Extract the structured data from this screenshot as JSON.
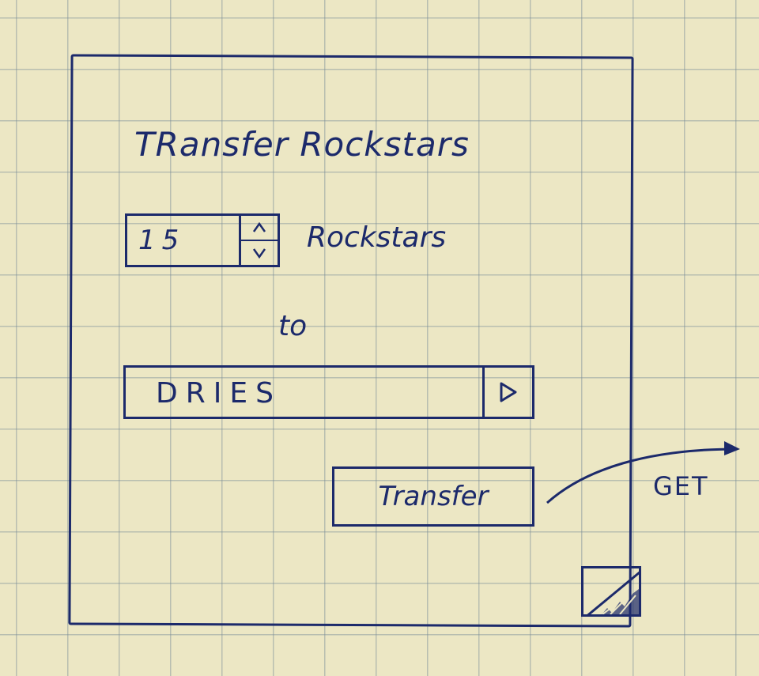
{
  "window": {
    "title": "TRansfer Rockstars"
  },
  "form": {
    "quantity": {
      "value": "15",
      "up_icon": "chevron-up-icon",
      "down_icon": "chevron-down-icon"
    },
    "unit_label": "Rockstars",
    "connector_label": "to",
    "recipient": {
      "value": "DRIES",
      "dropdown_icon": "triangle-down-icon"
    },
    "submit_label": "Transfer"
  },
  "annotation": {
    "method_label": "GET",
    "arrow_icon": "arrow-right-icon"
  },
  "colors": {
    "ink": "#1c2a6b",
    "paper": "#ece7c4",
    "grid": "#788c96"
  }
}
